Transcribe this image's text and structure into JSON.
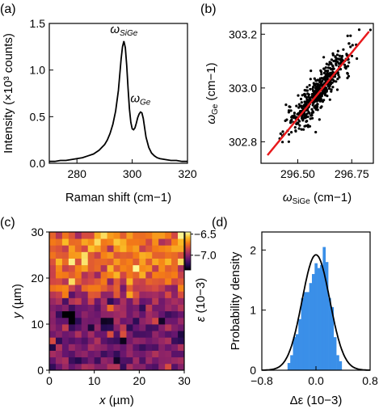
{
  "panels": {
    "a": "(a)",
    "b": "(b)",
    "c": "(c)",
    "d": "(d)"
  },
  "chart_data": [
    {
      "id": "a",
      "type": "line",
      "title": "",
      "xlabel": "Raman shift (cm−1)",
      "ylabel": "Intensity (×10³ counts)",
      "xlim": [
        270,
        320
      ],
      "ylim": [
        0,
        1.5
      ],
      "xticks": [
        280,
        300,
        320
      ],
      "xtick_labels": [
        "280",
        "300",
        "320"
      ],
      "yticks": [
        0,
        0.5,
        1.0,
        1.5
      ],
      "ytick_labels": [
        "0.0",
        "0.5",
        "1.0",
        "1.5"
      ],
      "annotations": [
        {
          "text": "ω",
          "sub": "SiGe",
          "x": 297,
          "y": 1.36
        },
        {
          "text": "ω",
          "sub": "Ge",
          "x": 303,
          "y": 0.62
        }
      ],
      "x": [
        270,
        272,
        274,
        276,
        278,
        280,
        282,
        284,
        286,
        287,
        288,
        289,
        290,
        291,
        292,
        293,
        294,
        295,
        295.5,
        296,
        296.5,
        297,
        297.5,
        298,
        298.5,
        299,
        299.5,
        300,
        300.5,
        301,
        301.5,
        302,
        302.5,
        303,
        303.5,
        304,
        304.5,
        305,
        306,
        307,
        308,
        309,
        310,
        312,
        314,
        316,
        318,
        320
      ],
      "y": [
        0.02,
        0.02,
        0.03,
        0.03,
        0.04,
        0.05,
        0.06,
        0.08,
        0.1,
        0.12,
        0.14,
        0.17,
        0.2,
        0.25,
        0.32,
        0.42,
        0.56,
        0.78,
        0.95,
        1.12,
        1.25,
        1.31,
        1.24,
        1.05,
        0.8,
        0.58,
        0.44,
        0.37,
        0.36,
        0.38,
        0.43,
        0.49,
        0.53,
        0.55,
        0.54,
        0.48,
        0.38,
        0.28,
        0.17,
        0.11,
        0.08,
        0.06,
        0.05,
        0.04,
        0.03,
        0.03,
        0.02,
        0.02
      ]
    },
    {
      "id": "b",
      "type": "scatter",
      "title": "",
      "xlabel": "ωSiGe (cm−1)",
      "xlabel_main": "ω",
      "xlabel_sub": "SiGe",
      "xlabel_unit": " (cm−1)",
      "ylabel_main": "ω",
      "ylabel_sub": "Ge",
      "ylabel_unit": " (cm−1)",
      "xlim": [
        296.33,
        296.85
      ],
      "ylim": [
        302.72,
        303.24
      ],
      "xticks": [
        296.5,
        296.75
      ],
      "xtick_labels": [
        "296.50",
        "296.75"
      ],
      "yticks": [
        302.8,
        303.0,
        303.2
      ],
      "ytick_labels": [
        "302.8",
        "303.0",
        "303.2"
      ],
      "fit_line": {
        "x": [
          296.36,
          296.83
        ],
        "y": [
          302.75,
          303.21
        ]
      },
      "fit_color": "#e8191c",
      "n_points": 500,
      "spread_sd": 0.034,
      "x_center": 296.6,
      "x_sd": 0.075,
      "slope": 0.98,
      "intercept_at_center": 302.99
    },
    {
      "id": "c",
      "type": "heatmap",
      "title": "",
      "xlabel": "x (µm)",
      "xlabel_main": "x",
      "xlabel_unit": " (µm)",
      "ylabel_main": "y",
      "ylabel_unit": " (µm)",
      "xlim": [
        0,
        30
      ],
      "ylim": [
        0,
        30
      ],
      "xticks": [
        0,
        10,
        20,
        30
      ],
      "xtick_labels": [
        "0",
        "10",
        "20",
        "30"
      ],
      "yticks": [
        0,
        10,
        20,
        30
      ],
      "yticks_labels": [
        "0",
        "10",
        "20",
        "30"
      ],
      "grid_size": 21,
      "colorbar": {
        "range": [
          -7.35,
          -6.45
        ],
        "ticks": [
          -6.5,
          -7.0
        ],
        "tick_labels": [
          "−6.5",
          "−7.0"
        ],
        "label_main": "ε",
        "label_unit": " (10−3)"
      },
      "upper_mean": -6.72,
      "lower_mean": -7.05,
      "transition_y": 17,
      "dark_spots": [
        {
          "x": 5,
          "y": 12
        },
        {
          "x": 5,
          "y": 11
        },
        {
          "x": 6,
          "y": 2
        },
        {
          "x": 13,
          "y": 11
        },
        {
          "x": 19,
          "y": 11
        }
      ]
    },
    {
      "id": "d",
      "type": "bar",
      "title": "",
      "xlabel": "Δε (10−3)",
      "xlabel_main": "Δε",
      "xlabel_unit": " (10−3)",
      "ylabel": "Probability density",
      "xlim": [
        -0.8,
        0.8
      ],
      "ylim": [
        0,
        2.3
      ],
      "xticks": [
        -0.8,
        0.0,
        0.8
      ],
      "xtick_labels": [
        "−0.8",
        "0.0",
        "0.8"
      ],
      "yticks": [
        0,
        1,
        2
      ],
      "ytick_labels": [
        "0",
        "1",
        "2"
      ],
      "bar_color": "#3a8fe8",
      "bin_edges": [
        -0.42,
        -0.38,
        -0.34,
        -0.3,
        -0.26,
        -0.22,
        -0.18,
        -0.14,
        -0.1,
        -0.06,
        -0.02,
        0.02,
        0.06,
        0.1,
        0.14,
        0.18,
        0.22,
        0.26,
        0.3,
        0.34,
        0.38
      ],
      "counts": [
        0.12,
        0.25,
        0.55,
        0.6,
        0.85,
        1.2,
        1.3,
        1.3,
        1.45,
        1.6,
        1.78,
        1.7,
        1.75,
        2.05,
        1.8,
        1.2,
        1.05,
        0.55,
        0.25,
        0.15
      ],
      "gaussian": {
        "mean": 0.0,
        "sd": 0.205,
        "peak": 1.92
      }
    }
  ]
}
